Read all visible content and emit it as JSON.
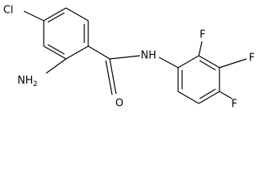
{
  "atoms": {
    "cl": "Cl",
    "nh2": {
      "main": "NH",
      "sub": "2"
    },
    "o": "O",
    "nh": "NH",
    "f1": "F",
    "f2": "F",
    "f3": "F"
  }
}
